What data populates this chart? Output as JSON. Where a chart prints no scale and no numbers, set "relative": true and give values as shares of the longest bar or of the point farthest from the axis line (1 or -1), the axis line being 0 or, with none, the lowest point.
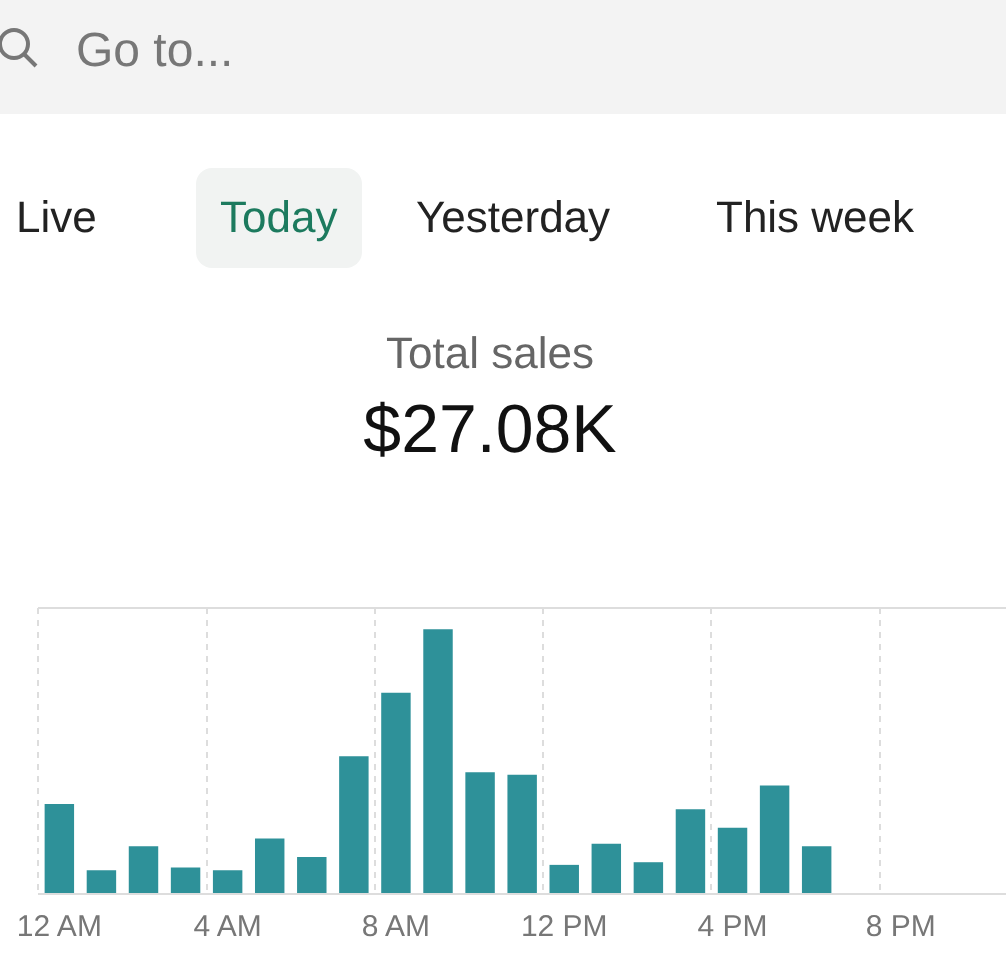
{
  "chart_data": {
    "type": "bar",
    "title": "Total sales",
    "subtitle": "$27.08K",
    "annotations": [
      "Go to...",
      "Live",
      "Today",
      "Yesterday",
      "This week"
    ],
    "categories": [
      "12 AM",
      null,
      null,
      null,
      "4 AM",
      null,
      null,
      null,
      "8 AM",
      null,
      null,
      null,
      "12 PM",
      null,
      null,
      null,
      "4 PM",
      null,
      null,
      null,
      "8 PM",
      null,
      null
    ],
    "values": [
      0.34,
      0.09,
      0.18,
      0.1,
      0.09,
      0.21,
      0.14,
      0.52,
      0.76,
      1,
      0.46,
      0.45,
      0.11,
      0.19,
      0.12,
      0.32,
      0.25,
      0.41,
      0.18,
      0,
      0,
      0,
      0
    ],
    "color": "#2e9199",
    "relative": true,
    "grid": true,
    "legend": false
  }
}
